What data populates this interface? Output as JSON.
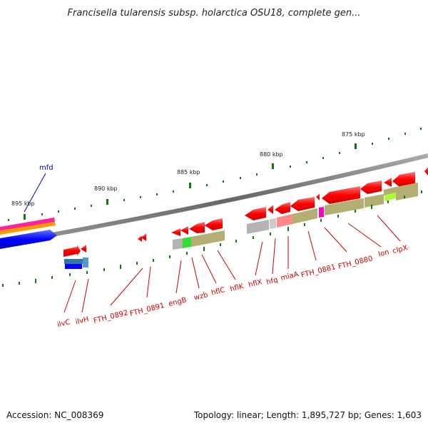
{
  "title": "Francisella tularensis subsp. holarctica OSU18, complete gen...",
  "accession": "Accession: NC_008369",
  "topology": "Topology: linear; Length: 1,895,727 bp; Genes: 1,603",
  "colors": {
    "gene_red": "#ff0000",
    "gene_blue": "#0000ff",
    "label_red": "#cc0000",
    "label_blue": "#0000cc",
    "tick_green": "#117711",
    "backbone": "#777777",
    "feature_olive": "#b3ae72",
    "feature_gray": "#b4b4b4",
    "feature_green": "#33dd33",
    "feature_salmon": "#ff8888",
    "feature_magenta": "#ff00bb",
    "feature_orange": "#ff9900",
    "feature_pink": "#ff2299",
    "feature_teal": "#3377aa",
    "feature_lime": "#aaff33"
  },
  "kbp_labels": [
    "895 kbp",
    "890 kbp",
    "885 kbp",
    "880 kbp",
    "875 kbp"
  ],
  "genes": [
    {
      "name": "mfd",
      "color": "blue"
    },
    {
      "name": "ilvC",
      "color": "red"
    },
    {
      "name": "ilvH",
      "color": "red"
    },
    {
      "name": "FTH_0892",
      "color": "red"
    },
    {
      "name": "FTH_0891",
      "color": "red"
    },
    {
      "name": "engB",
      "color": "red"
    },
    {
      "name": "wzb",
      "color": "red"
    },
    {
      "name": "hflC",
      "color": "red"
    },
    {
      "name": "hflK",
      "color": "red"
    },
    {
      "name": "hflX",
      "color": "red"
    },
    {
      "name": "hfq",
      "color": "red"
    },
    {
      "name": "miaA",
      "color": "red"
    },
    {
      "name": "FTH_0881",
      "color": "red"
    },
    {
      "name": "FTH_0880",
      "color": "red"
    },
    {
      "name": "lon",
      "color": "red"
    },
    {
      "name": "clpX",
      "color": "red"
    }
  ]
}
